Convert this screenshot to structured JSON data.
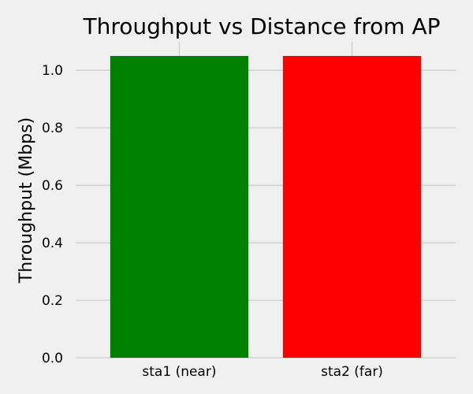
{
  "chart_data": {
    "type": "bar",
    "title": "Throughput vs Distance from AP",
    "xlabel": "",
    "ylabel": "Throughput (Mbps)",
    "categories": [
      "sta1 (near)",
      "sta2 (far)"
    ],
    "values": [
      1.05,
      1.05
    ],
    "colors": [
      "#008000",
      "#ff0000"
    ],
    "ylim": [
      0,
      1.05
    ],
    "yticks": [
      0.0,
      0.2,
      0.4,
      0.6,
      0.8,
      1.0
    ],
    "ytick_labels": [
      "0.0",
      "0.2",
      "0.4",
      "0.6",
      "0.8",
      "1.0"
    ],
    "grid": true,
    "background": "#f0f0f0",
    "grid_color": "#cbcbcb"
  }
}
